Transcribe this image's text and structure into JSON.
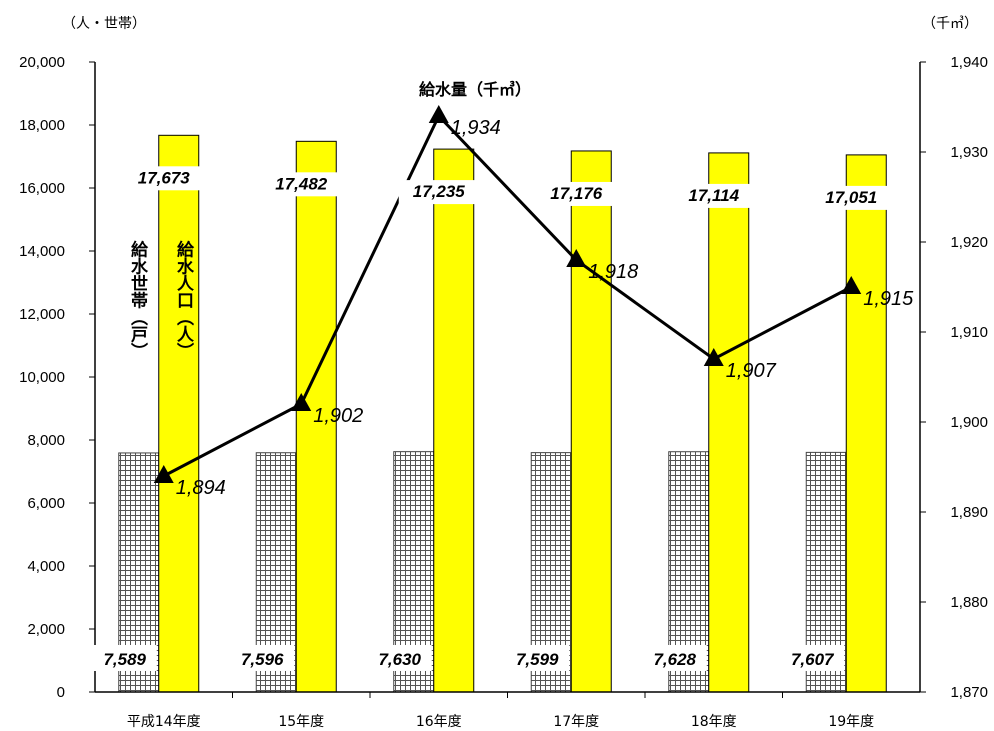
{
  "chart_data": {
    "type": "bar",
    "categories": [
      "平成14年度",
      "15年度",
      "16年度",
      "17年度",
      "18年度",
      "19年度"
    ],
    "left_axis": {
      "unit": "（人・世帯）",
      "ylim": [
        0,
        20000
      ],
      "ticks": [
        "0",
        "2,000",
        "4,000",
        "6,000",
        "8,000",
        "10,000",
        "12,000",
        "14,000",
        "16,000",
        "18,000",
        "20,000"
      ]
    },
    "right_axis": {
      "unit": "（千㎥）",
      "ylim": [
        1870,
        1940
      ],
      "ticks": [
        "1,870",
        "1,880",
        "1,890",
        "1,900",
        "1,910",
        "1,920",
        "1,930",
        "1,940"
      ]
    },
    "series": [
      {
        "name": "給水世帯（戸）",
        "kind": "bar",
        "axis": "left",
        "pattern": "grid",
        "values": [
          7589,
          7596,
          7630,
          7599,
          7628,
          7607
        ],
        "labels": [
          "7,589",
          "7,596",
          "7,630",
          "7,599",
          "7,628",
          "7,607"
        ]
      },
      {
        "name": "給水人口（人）",
        "kind": "bar",
        "axis": "left",
        "color": "#ffff00",
        "values": [
          17673,
          17482,
          17235,
          17176,
          17114,
          17051
        ],
        "labels": [
          "17,673",
          "17,482",
          "17,235",
          "17,176",
          "17,114",
          "17,051"
        ]
      },
      {
        "name": "給水量（千㎥）",
        "kind": "line",
        "axis": "right",
        "marker": "triangle",
        "values": [
          1894,
          1902,
          1934,
          1918,
          1907,
          1915
        ],
        "labels": [
          "1,894",
          "1,902",
          "1,934",
          "1,918",
          "1,907",
          "1,915"
        ]
      }
    ],
    "grid": false,
    "legend": "labels-inside-plot"
  }
}
